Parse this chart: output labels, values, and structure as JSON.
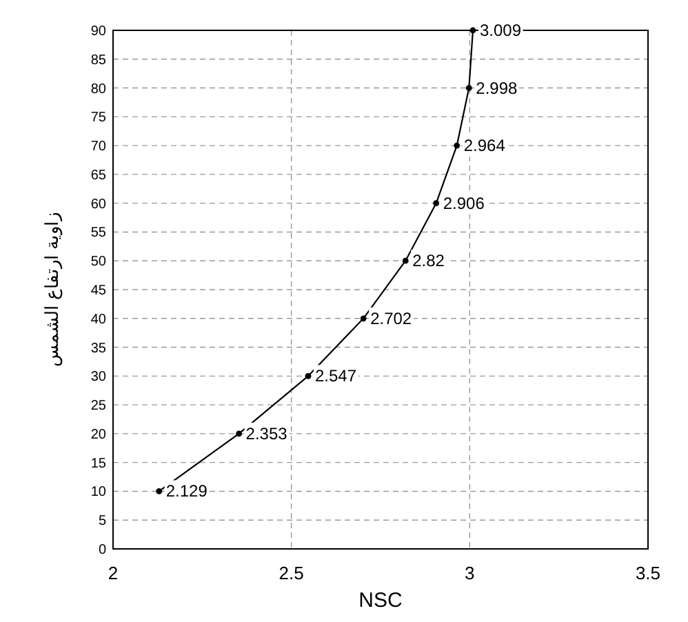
{
  "chart_data": {
    "type": "line",
    "xlabel": "NSC",
    "ylabel": "زاوية ارتفاع الشمس",
    "x": [
      2.129,
      2.353,
      2.547,
      2.702,
      2.82,
      2.906,
      2.964,
      2.998,
      3.009
    ],
    "values": [
      10,
      20,
      30,
      40,
      50,
      60,
      70,
      80,
      90
    ],
    "color": "#000000",
    "marker": "circle",
    "line_style": "solid",
    "grid": true,
    "xlim": [
      2,
      3.5
    ],
    "xticks": [
      2,
      2.5,
      3,
      3.5
    ],
    "ylim": [
      0,
      90
    ],
    "yticks": [
      0,
      5,
      10,
      15,
      20,
      25,
      30,
      35,
      40,
      45,
      50,
      55,
      60,
      65,
      70,
      75,
      80,
      85,
      90
    ],
    "annotations": [
      {
        "text": "2.129",
        "x": 2.129,
        "y": 10
      },
      {
        "text": "2.353",
        "x": 2.353,
        "y": 20
      },
      {
        "text": "2.547",
        "x": 2.547,
        "y": 30
      },
      {
        "text": "2.702",
        "x": 2.702,
        "y": 40
      },
      {
        "text": "2.82",
        "x": 2.82,
        "y": 50
      },
      {
        "text": "2.906",
        "x": 2.906,
        "y": 60
      },
      {
        "text": "2.964",
        "x": 2.964,
        "y": 70
      },
      {
        "text": "2.998",
        "x": 2.998,
        "y": 80
      },
      {
        "text": "3.009",
        "x": 3.009,
        "y": 90
      }
    ]
  }
}
